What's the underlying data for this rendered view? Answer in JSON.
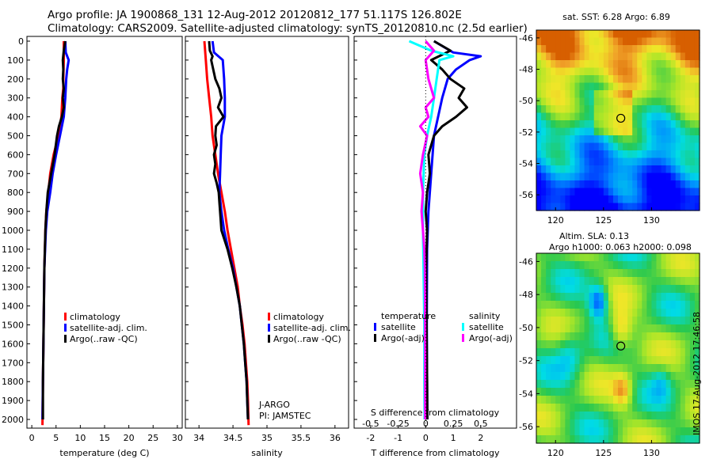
{
  "header": {
    "line1": "Argo profile: JA 1900868_131 12-Aug-2012 20120812_177 51.117S 126.802E",
    "line2": "Climatology: CARS2009. Satellite-adjusted climatology: synTS_20120810.nc (2.5d earlier)"
  },
  "side_label": "IMOS 17-Aug-2012 17:46:58",
  "colors": {
    "clim": "#ff0000",
    "sat": "#0000ff",
    "argo": "#000000",
    "s_sat": "#00ffff",
    "s_argo": "#ff00ff"
  },
  "chart_data": [
    {
      "type": "line",
      "xlabel": "temperature (deg C)",
      "xlim": [
        -1,
        31
      ],
      "ylim": [
        2050,
        0
      ],
      "xticks": [
        0,
        5,
        10,
        15,
        20,
        25,
        30
      ],
      "yticks": [
        0,
        100,
        200,
        300,
        400,
        500,
        600,
        700,
        800,
        900,
        1000,
        1100,
        1200,
        1300,
        1400,
        1500,
        1600,
        1700,
        1800,
        1900,
        2000
      ],
      "legend": [
        "climatology",
        "satellite-adj. clim.",
        "Argo(..raw -QC)"
      ],
      "series": [
        {
          "name": "climatology",
          "color_key": "clim",
          "points": [
            [
              6.6,
              0
            ],
            [
              6.6,
              100
            ],
            [
              6.5,
              200
            ],
            [
              6.5,
              250
            ],
            [
              6.3,
              300
            ],
            [
              6.1,
              400
            ],
            [
              5.5,
              500
            ],
            [
              4.5,
              600
            ],
            [
              3.8,
              700
            ],
            [
              3.4,
              800
            ],
            [
              3.0,
              900
            ],
            [
              2.8,
              1000
            ],
            [
              2.6,
              1200
            ],
            [
              2.5,
              1400
            ],
            [
              2.4,
              1600
            ],
            [
              2.3,
              1800
            ],
            [
              2.2,
              2030
            ]
          ]
        },
        {
          "name": "satellite-adj. clim.",
          "color_key": "sat",
          "points": [
            [
              6.9,
              0
            ],
            [
              7.0,
              60
            ],
            [
              7.6,
              100
            ],
            [
              7.3,
              150
            ],
            [
              7.1,
              200
            ],
            [
              6.9,
              300
            ],
            [
              6.6,
              400
            ],
            [
              5.8,
              500
            ],
            [
              5.0,
              600
            ],
            [
              4.3,
              700
            ],
            [
              3.8,
              800
            ],
            [
              3.2,
              900
            ],
            [
              2.9,
              1000
            ],
            [
              2.6,
              1200
            ],
            [
              2.5,
              1400
            ],
            [
              2.4,
              1600
            ],
            [
              2.3,
              1800
            ],
            [
              2.2,
              2000
            ]
          ]
        },
        {
          "name": "Argo(..raw -QC)",
          "color_key": "argo",
          "points": [
            [
              6.9,
              0
            ],
            [
              6.6,
              50
            ],
            [
              6.4,
              100
            ],
            [
              6.5,
              150
            ],
            [
              6.4,
              200
            ],
            [
              6.6,
              250
            ],
            [
              6.4,
              300
            ],
            [
              6.6,
              350
            ],
            [
              6.2,
              400
            ],
            [
              5.6,
              450
            ],
            [
              5.2,
              500
            ],
            [
              4.7,
              600
            ],
            [
              4.0,
              700
            ],
            [
              3.3,
              800
            ],
            [
              3.0,
              900
            ],
            [
              2.8,
              1000
            ],
            [
              2.6,
              1200
            ],
            [
              2.5,
              1400
            ],
            [
              2.4,
              1600
            ],
            [
              2.3,
              1800
            ],
            [
              2.3,
              2000
            ]
          ]
        }
      ]
    },
    {
      "type": "line",
      "xlabel": "salinity",
      "xlim": [
        33.8,
        36.2
      ],
      "ylim": [
        2050,
        0
      ],
      "xticks": [
        34,
        34.5,
        35,
        35.5,
        36
      ],
      "legend": [
        "climatology",
        "satellite-adj. clim.",
        "Argo(..raw -QC)"
      ],
      "annotation": [
        "J-ARGO",
        "PI: JAMSTEC"
      ],
      "series": [
        {
          "name": "climatology",
          "color_key": "clim",
          "points": [
            [
              34.08,
              0
            ],
            [
              34.1,
              100
            ],
            [
              34.12,
              200
            ],
            [
              34.15,
              300
            ],
            [
              34.18,
              400
            ],
            [
              34.2,
              500
            ],
            [
              34.24,
              600
            ],
            [
              34.28,
              700
            ],
            [
              34.33,
              800
            ],
            [
              34.38,
              900
            ],
            [
              34.42,
              1000
            ],
            [
              34.47,
              1100
            ],
            [
              34.52,
              1200
            ],
            [
              34.57,
              1300
            ],
            [
              34.6,
              1400
            ],
            [
              34.64,
              1500
            ],
            [
              34.67,
              1600
            ],
            [
              34.69,
              1700
            ],
            [
              34.71,
              1800
            ],
            [
              34.72,
              1900
            ],
            [
              34.73,
              2030
            ]
          ]
        },
        {
          "name": "satellite-adj. clim.",
          "color_key": "sat",
          "points": [
            [
              34.2,
              0
            ],
            [
              34.22,
              60
            ],
            [
              34.35,
              100
            ],
            [
              34.37,
              200
            ],
            [
              34.38,
              300
            ],
            [
              34.38,
              400
            ],
            [
              34.33,
              500
            ],
            [
              34.32,
              600
            ],
            [
              34.31,
              700
            ],
            [
              34.3,
              800
            ],
            [
              34.33,
              900
            ],
            [
              34.37,
              1000
            ],
            [
              34.43,
              1100
            ],
            [
              34.5,
              1200
            ],
            [
              34.55,
              1300
            ],
            [
              34.6,
              1400
            ],
            [
              34.63,
              1500
            ],
            [
              34.66,
              1600
            ],
            [
              34.68,
              1700
            ],
            [
              34.7,
              1800
            ],
            [
              34.71,
              1900
            ],
            [
              34.72,
              2000
            ]
          ]
        },
        {
          "name": "Argo(..raw -QC)",
          "color_key": "argo",
          "points": [
            [
              34.15,
              0
            ],
            [
              34.16,
              50
            ],
            [
              34.2,
              80
            ],
            [
              34.18,
              100
            ],
            [
              34.24,
              200
            ],
            [
              34.3,
              250
            ],
            [
              34.33,
              300
            ],
            [
              34.28,
              350
            ],
            [
              34.36,
              400
            ],
            [
              34.25,
              450
            ],
            [
              34.24,
              500
            ],
            [
              34.26,
              550
            ],
            [
              34.22,
              600
            ],
            [
              34.24,
              650
            ],
            [
              34.22,
              700
            ],
            [
              34.26,
              750
            ],
            [
              34.29,
              800
            ],
            [
              34.3,
              850
            ],
            [
              34.31,
              900
            ],
            [
              34.33,
              1000
            ],
            [
              34.42,
              1100
            ],
            [
              34.49,
              1200
            ],
            [
              34.55,
              1300
            ],
            [
              34.6,
              1400
            ],
            [
              34.63,
              1500
            ],
            [
              34.66,
              1600
            ],
            [
              34.68,
              1700
            ],
            [
              34.7,
              1800
            ],
            [
              34.71,
              1900
            ],
            [
              34.72,
              2000
            ]
          ]
        }
      ]
    },
    {
      "type": "line",
      "xlabel": "T difference from climatology",
      "xlabel_top": "S difference from climatology",
      "xlim": [
        -2.6,
        3.3
      ],
      "ylim": [
        2050,
        0
      ],
      "xticks": [
        -2,
        -1,
        0,
        1,
        2
      ],
      "xticks_top": [
        "-0.5",
        "-0.25",
        "0",
        "0.25",
        "0.5"
      ],
      "legend_groups": [
        {
          "title": "temperature",
          "items": [
            "satellite",
            "Argo(-adj)"
          ]
        },
        {
          "title": "salinity",
          "items": [
            "satellite",
            "Argo(-adj)"
          ]
        }
      ],
      "series": [
        {
          "name": "T satellite",
          "color_key": "sat",
          "points": [
            [
              0.3,
              0
            ],
            [
              1.0,
              60
            ],
            [
              2.0,
              80
            ],
            [
              1.6,
              100
            ],
            [
              1.1,
              150
            ],
            [
              0.8,
              200
            ],
            [
              0.6,
              300
            ],
            [
              0.45,
              400
            ],
            [
              0.3,
              500
            ],
            [
              0.2,
              700
            ],
            [
              0.1,
              900
            ],
            [
              0.05,
              1100
            ],
            [
              0.04,
              1500
            ],
            [
              0.05,
              1800
            ],
            [
              0.06,
              2000
            ]
          ]
        },
        {
          "name": "T Argo(-adj)",
          "color_key": "argo",
          "points": [
            [
              0.3,
              0
            ],
            [
              0.9,
              50
            ],
            [
              0.2,
              100
            ],
            [
              0.6,
              150
            ],
            [
              0.9,
              200
            ],
            [
              1.4,
              250
            ],
            [
              1.2,
              300
            ],
            [
              1.5,
              350
            ],
            [
              1.1,
              400
            ],
            [
              0.6,
              450
            ],
            [
              0.3,
              500
            ],
            [
              0.1,
              600
            ],
            [
              0.15,
              700
            ],
            [
              0.05,
              800
            ],
            [
              0.0,
              900
            ],
            [
              0.05,
              1000
            ],
            [
              0.02,
              1200
            ],
            [
              0.03,
              1500
            ],
            [
              0.05,
              1800
            ],
            [
              0.06,
              2000
            ]
          ]
        },
        {
          "name": "S satellite",
          "color_key": "s_sat",
          "points": [
            [
              -0.6,
              0
            ],
            [
              0.2,
              50
            ],
            [
              1.0,
              80
            ],
            [
              0.5,
              100
            ],
            [
              0.4,
              200
            ],
            [
              0.3,
              300
            ],
            [
              0.2,
              400
            ],
            [
              0.05,
              500
            ],
            [
              -0.05,
              600
            ],
            [
              -0.1,
              800
            ],
            [
              -0.1,
              1000
            ],
            [
              -0.08,
              1200
            ],
            [
              -0.05,
              1500
            ],
            [
              -0.05,
              1800
            ],
            [
              -0.04,
              2000
            ]
          ]
        },
        {
          "name": "S Argo(-adj)",
          "color_key": "s_argo",
          "points": [
            [
              0.0,
              0
            ],
            [
              0.3,
              50
            ],
            [
              0.0,
              100
            ],
            [
              0.1,
              200
            ],
            [
              0.2,
              250
            ],
            [
              0.3,
              300
            ],
            [
              0.0,
              350
            ],
            [
              0.1,
              400
            ],
            [
              -0.2,
              450
            ],
            [
              0.05,
              500
            ],
            [
              -0.1,
              600
            ],
            [
              -0.2,
              700
            ],
            [
              -0.1,
              800
            ],
            [
              -0.15,
              900
            ],
            [
              -0.1,
              1000
            ],
            [
              -0.05,
              1100
            ],
            [
              -0.03,
              1200
            ],
            [
              -0.02,
              1500
            ],
            [
              -0.02,
              1800
            ],
            [
              -0.02,
              2000
            ]
          ]
        }
      ]
    },
    {
      "type": "heatmap",
      "title": "sat. SST: 6.28 Argo: 6.89",
      "xticks": [
        120,
        125,
        130
      ],
      "yticks": [
        -46,
        -48,
        -50,
        -52,
        -54,
        -56
      ],
      "xlim": [
        118,
        135
      ],
      "ylim": [
        -57,
        -45.5
      ],
      "marker": [
        126.8,
        -51.12
      ]
    },
    {
      "type": "heatmap",
      "title": "Altim. SLA: 0.13",
      "subtitle": "Argo h1000: 0.063 h2000: 0.098",
      "xticks": [
        120,
        125,
        130
      ],
      "yticks": [
        -46,
        -48,
        -50,
        -52,
        -54,
        -56
      ],
      "xlim": [
        118,
        135
      ],
      "ylim": [
        -57,
        -45.5
      ],
      "marker": [
        126.8,
        -51.12
      ]
    }
  ]
}
